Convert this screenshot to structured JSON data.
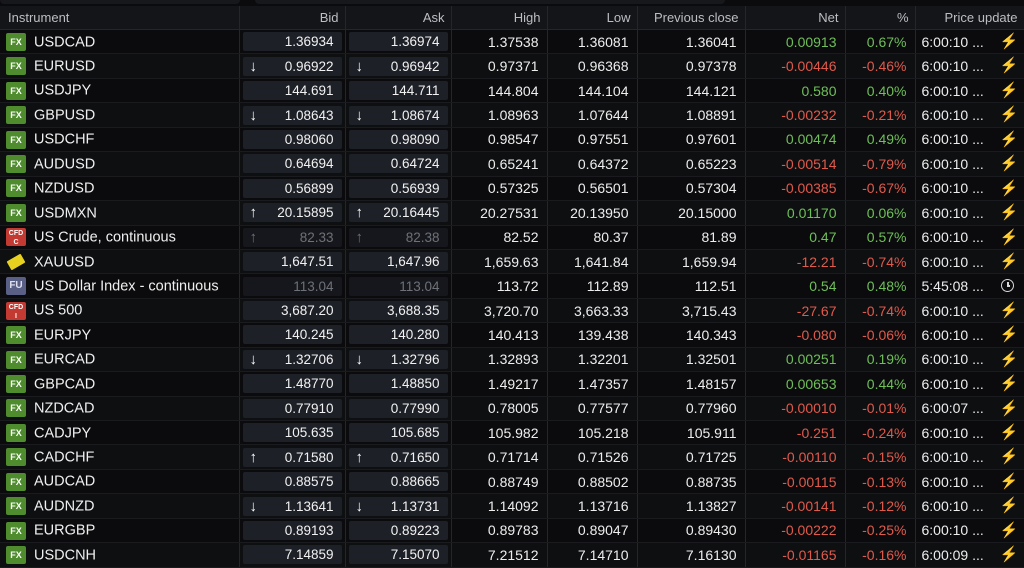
{
  "headers": {
    "instrument": "Instrument",
    "bid": "Bid",
    "ask": "Ask",
    "high": "High",
    "low": "Low",
    "prev": "Previous close",
    "net": "Net",
    "pct": "%",
    "update": "Price update"
  },
  "colors": {
    "positive": "#6fbf5a",
    "negative": "#e05a4c",
    "fx_badge": "#4e8c2e",
    "bolt": "#5fc24a"
  },
  "rows": [
    {
      "name": "USDCAD",
      "badge": "FX",
      "bid": "1.36934",
      "ask": "1.36974",
      "high": "1.37538",
      "low": "1.36081",
      "prev": "1.36041",
      "net": "0.00913",
      "pct": "0.67%",
      "time": "6:00:10 ...",
      "arrow": "none",
      "dir": "pos",
      "stale": false,
      "status": "bolt"
    },
    {
      "name": "EURUSD",
      "badge": "FX",
      "bid": "0.96922",
      "ask": "0.96942",
      "high": "0.97371",
      "low": "0.96368",
      "prev": "0.97378",
      "net": "-0.00446",
      "pct": "-0.46%",
      "time": "6:00:10 ...",
      "arrow": "down",
      "dir": "neg",
      "stale": false,
      "status": "bolt"
    },
    {
      "name": "USDJPY",
      "badge": "FX",
      "bid": "144.691",
      "ask": "144.711",
      "high": "144.804",
      "low": "144.104",
      "prev": "144.121",
      "net": "0.580",
      "pct": "0.40%",
      "time": "6:00:10 ...",
      "arrow": "none",
      "dir": "pos",
      "stale": false,
      "status": "bolt"
    },
    {
      "name": "GBPUSD",
      "badge": "FX",
      "bid": "1.08643",
      "ask": "1.08674",
      "high": "1.08963",
      "low": "1.07644",
      "prev": "1.08891",
      "net": "-0.00232",
      "pct": "-0.21%",
      "time": "6:00:10 ...",
      "arrow": "down",
      "dir": "neg",
      "stale": false,
      "status": "bolt"
    },
    {
      "name": "USDCHF",
      "badge": "FX",
      "bid": "0.98060",
      "ask": "0.98090",
      "high": "0.98547",
      "low": "0.97551",
      "prev": "0.97601",
      "net": "0.00474",
      "pct": "0.49%",
      "time": "6:00:10 ...",
      "arrow": "none",
      "dir": "pos",
      "stale": false,
      "status": "bolt"
    },
    {
      "name": "AUDUSD",
      "badge": "FX",
      "bid": "0.64694",
      "ask": "0.64724",
      "high": "0.65241",
      "low": "0.64372",
      "prev": "0.65223",
      "net": "-0.00514",
      "pct": "-0.79%",
      "time": "6:00:10 ...",
      "arrow": "none",
      "dir": "neg",
      "stale": false,
      "status": "bolt"
    },
    {
      "name": "NZDUSD",
      "badge": "FX",
      "bid": "0.56899",
      "ask": "0.56939",
      "high": "0.57325",
      "low": "0.56501",
      "prev": "0.57304",
      "net": "-0.00385",
      "pct": "-0.67%",
      "time": "6:00:10 ...",
      "arrow": "none",
      "dir": "neg",
      "stale": false,
      "status": "bolt"
    },
    {
      "name": "USDMXN",
      "badge": "FX",
      "bid": "20.15895",
      "ask": "20.16445",
      "high": "20.27531",
      "low": "20.13950",
      "prev": "20.15000",
      "net": "0.01170",
      "pct": "0.06%",
      "time": "6:00:10 ...",
      "arrow": "up",
      "dir": "pos",
      "stale": false,
      "status": "bolt"
    },
    {
      "name": "US Crude, continuous",
      "badge": "CFD",
      "badge_sub": "C",
      "bid": "82.33",
      "ask": "82.38",
      "high": "82.52",
      "low": "80.37",
      "prev": "81.89",
      "net": "0.47",
      "pct": "0.57%",
      "time": "6:00:10 ...",
      "arrow": "up",
      "dir": "pos",
      "stale": true,
      "status": "bolt"
    },
    {
      "name": "XAUUSD",
      "badge": "GOLD",
      "bid": "1,647.51",
      "ask": "1,647.96",
      "high": "1,659.63",
      "low": "1,641.84",
      "prev": "1,659.94",
      "net": "-12.21",
      "pct": "-0.74%",
      "time": "6:00:10 ...",
      "arrow": "none",
      "dir": "neg",
      "stale": false,
      "status": "bolt"
    },
    {
      "name": "US Dollar Index - continuous",
      "badge": "FU",
      "bid": "113.04",
      "ask": "113.04",
      "high": "113.72",
      "low": "112.89",
      "prev": "112.51",
      "net": "0.54",
      "pct": "0.48%",
      "time": "5:45:08 ...",
      "arrow": "none",
      "dir": "pos",
      "stale": true,
      "status": "clock"
    },
    {
      "name": "US 500",
      "badge": "CFD",
      "badge_sub": "I",
      "bid": "3,687.20",
      "ask": "3,688.35",
      "high": "3,720.70",
      "low": "3,663.33",
      "prev": "3,715.43",
      "net": "-27.67",
      "pct": "-0.74%",
      "time": "6:00:10 ...",
      "arrow": "none",
      "dir": "neg",
      "stale": false,
      "status": "bolt"
    },
    {
      "name": "EURJPY",
      "badge": "FX",
      "bid": "140.245",
      "ask": "140.280",
      "high": "140.413",
      "low": "139.438",
      "prev": "140.343",
      "net": "-0.080",
      "pct": "-0.06%",
      "time": "6:00:10 ...",
      "arrow": "none",
      "dir": "neg",
      "stale": false,
      "status": "bolt"
    },
    {
      "name": "EURCAD",
      "badge": "FX",
      "bid": "1.32706",
      "ask": "1.32796",
      "high": "1.32893",
      "low": "1.32201",
      "prev": "1.32501",
      "net": "0.00251",
      "pct": "0.19%",
      "time": "6:00:10 ...",
      "arrow": "down",
      "dir": "pos",
      "stale": false,
      "status": "bolt"
    },
    {
      "name": "GBPCAD",
      "badge": "FX",
      "bid": "1.48770",
      "ask": "1.48850",
      "high": "1.49217",
      "low": "1.47357",
      "prev": "1.48157",
      "net": "0.00653",
      "pct": "0.44%",
      "time": "6:00:10 ...",
      "arrow": "none",
      "dir": "pos",
      "stale": false,
      "status": "bolt"
    },
    {
      "name": "NZDCAD",
      "badge": "FX",
      "bid": "0.77910",
      "ask": "0.77990",
      "high": "0.78005",
      "low": "0.77577",
      "prev": "0.77960",
      "net": "-0.00010",
      "pct": "-0.01%",
      "time": "6:00:07 ...",
      "arrow": "none",
      "dir": "neg",
      "stale": false,
      "status": "bolt"
    },
    {
      "name": "CADJPY",
      "badge": "FX",
      "bid": "105.635",
      "ask": "105.685",
      "high": "105.982",
      "low": "105.218",
      "prev": "105.911",
      "net": "-0.251",
      "pct": "-0.24%",
      "time": "6:00:10 ...",
      "arrow": "none",
      "dir": "neg",
      "stale": false,
      "status": "bolt"
    },
    {
      "name": "CADCHF",
      "badge": "FX",
      "bid": "0.71580",
      "ask": "0.71650",
      "high": "0.71714",
      "low": "0.71526",
      "prev": "0.71725",
      "net": "-0.00110",
      "pct": "-0.15%",
      "time": "6:00:10 ...",
      "arrow": "up",
      "dir": "neg",
      "stale": false,
      "status": "bolt"
    },
    {
      "name": "AUDCAD",
      "badge": "FX",
      "bid": "0.88575",
      "ask": "0.88665",
      "high": "0.88749",
      "low": "0.88502",
      "prev": "0.88735",
      "net": "-0.00115",
      "pct": "-0.13%",
      "time": "6:00:10 ...",
      "arrow": "none",
      "dir": "neg",
      "stale": false,
      "status": "bolt"
    },
    {
      "name": "AUDNZD",
      "badge": "FX",
      "bid": "1.13641",
      "ask": "1.13731",
      "high": "1.14092",
      "low": "1.13716",
      "prev": "1.13827",
      "net": "-0.00141",
      "pct": "-0.12%",
      "time": "6:00:10 ...",
      "arrow": "down",
      "dir": "neg",
      "stale": false,
      "status": "bolt"
    },
    {
      "name": "EURGBP",
      "badge": "FX",
      "bid": "0.89193",
      "ask": "0.89223",
      "high": "0.89783",
      "low": "0.89047",
      "prev": "0.89430",
      "net": "-0.00222",
      "pct": "-0.25%",
      "time": "6:00:10 ...",
      "arrow": "none",
      "dir": "neg",
      "stale": false,
      "status": "bolt"
    },
    {
      "name": "USDCNH",
      "badge": "FX",
      "bid": "7.14859",
      "ask": "7.15070",
      "high": "7.21512",
      "low": "7.14710",
      "prev": "7.16130",
      "net": "-0.01165",
      "pct": "-0.16%",
      "time": "6:00:09 ...",
      "arrow": "none",
      "dir": "neg",
      "stale": false,
      "status": "bolt"
    }
  ]
}
